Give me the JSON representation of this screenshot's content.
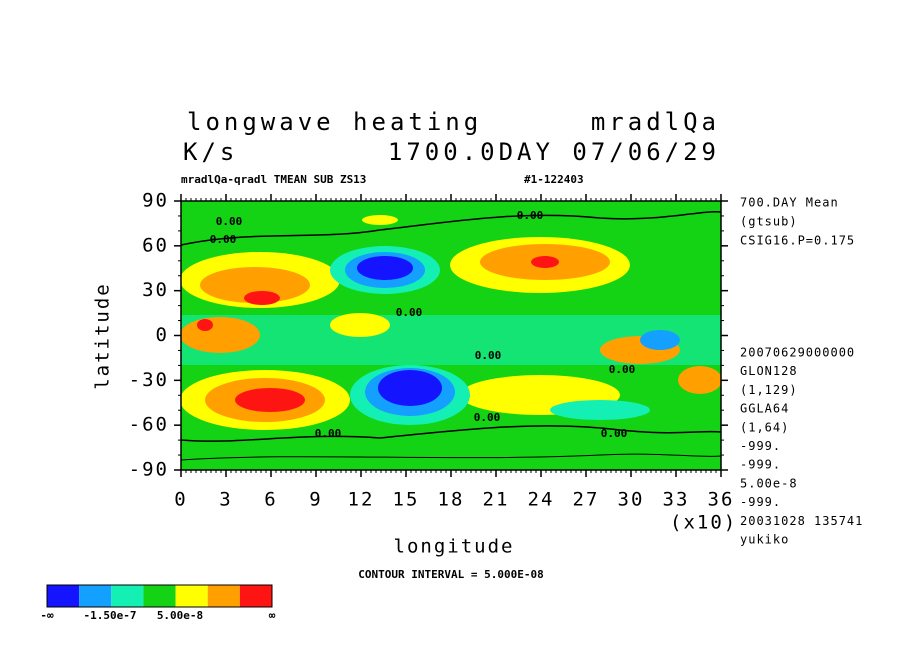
{
  "chart_data": {
    "type": "contour",
    "title": "longwave heating",
    "variable": "mradlQa",
    "units": "K/s",
    "time": "1700.0DAY 07/06/29",
    "subtitle": "mradlQa-qradl TMEAN SUB ZS13",
    "run_id": "#1-122403",
    "x_label": "longitude",
    "y_label": "latitude",
    "x_multiplier": "(x10)",
    "xlim": [
      0,
      36
    ],
    "ylim": [
      -90,
      90
    ],
    "xticks": [
      0,
      3,
      6,
      9,
      12,
      15,
      18,
      21,
      24,
      27,
      30,
      33,
      36
    ],
    "yticks": [
      -90,
      -60,
      -30,
      0,
      30,
      60,
      90
    ],
    "annotations_top": [
      "700.DAY Mean",
      "(gtsub)",
      "CSIG16.P=0.175"
    ],
    "annotations_bottom": [
      "20070629000000",
      "GLON128",
      "(1,129)",
      "GGLA64",
      "(1,64)",
      "-999.",
      "-999.",
      "5.00e-8",
      "-999.",
      "20031028 135741",
      "yukiko"
    ],
    "contour_interval": "CONTOUR INTERVAL = 5.000E-08",
    "contour_labels": [
      "0.00",
      "0.00",
      "0.00",
      "0.00",
      "0.00",
      "0.00",
      "0.00",
      "0.00",
      "0.00"
    ],
    "colorbar": {
      "colors": [
        "#1414ff",
        "#14a0ff",
        "#14f0b4",
        "#14d214",
        "#ffff00",
        "#ffa000",
        "#ff1414"
      ],
      "labels": [
        "-∞",
        "-1.50e-7",
        "5.00e-8",
        "∞"
      ]
    }
  }
}
